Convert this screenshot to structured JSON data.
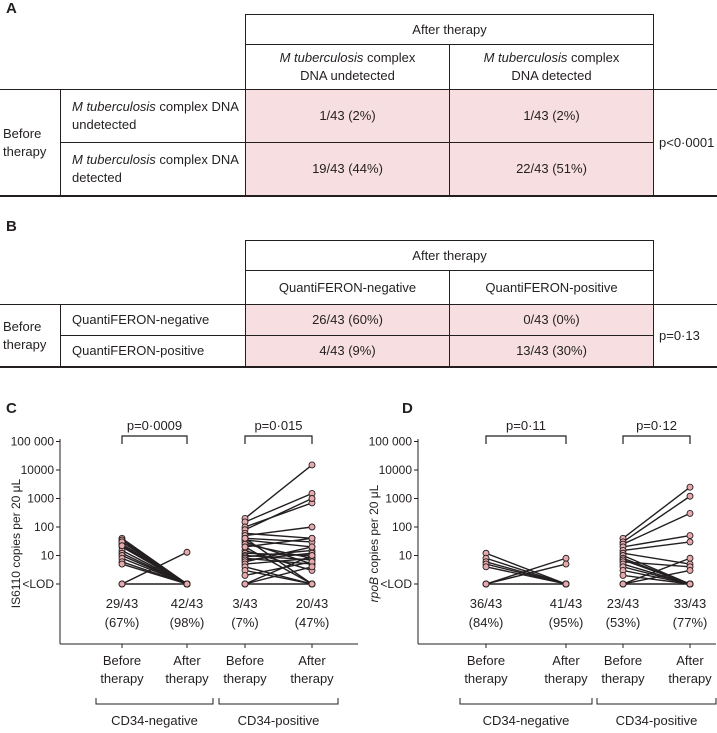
{
  "panel_a": {
    "letter": "A",
    "after_header": "After therapy",
    "col1": {
      "organism": "M tuberculosis",
      "line1_suffix": " complex",
      "line2": "DNA undetected"
    },
    "col2": {
      "organism": "M tuberculosis",
      "line1_suffix": " complex",
      "line2": "DNA detected"
    },
    "before_label_1": "Before",
    "before_label_2": "therapy",
    "row1": {
      "organism": "M tuberculosis",
      "line1_suffix": " complex DNA",
      "line2": "undetected",
      "v1": "1/43 (2%)",
      "v2": "1/43 (2%)"
    },
    "row2": {
      "organism": "M tuberculosis",
      "line1_suffix": " complex DNA",
      "line2": "detected",
      "v1": "19/43 (44%)",
      "v2": "22/43 (51%)"
    },
    "p_value": "p<0·0001"
  },
  "panel_b": {
    "letter": "B",
    "after_header": "After therapy",
    "col1": "QuantiFERON-negative",
    "col2": "QuantiFERON-positive",
    "before_label_1": "Before",
    "before_label_2": "therapy",
    "row1": {
      "label": "QuantiFERON-negative",
      "v1": "26/43 (60%)",
      "v2": "0/43 (0%)"
    },
    "row2": {
      "label": "QuantiFERON-positive",
      "v1": "4/43 (9%)",
      "v2": "13/43 (30%)"
    },
    "p_value": "p=0·13"
  },
  "chart_data": [
    {
      "panel": "C",
      "type": "line",
      "ylabel": "IS6110 copies per 20 μL",
      "ylabel_prefix": "IS",
      "ylabel_number": "6110",
      "ylabel_rest": " copies per 20 μL",
      "yticks": [
        "<LOD",
        "10",
        "100",
        "1000",
        "10000",
        "100 000"
      ],
      "groups": [
        {
          "name": "CD34-negative",
          "x_labels": [
            [
              "Before",
              "therapy"
            ],
            [
              "After",
              "therapy"
            ]
          ],
          "p_value": "p=0·0009",
          "counts": [
            [
              "29/43",
              "(67%)"
            ],
            [
              "42/43",
              "(98%)"
            ]
          ],
          "pairs": [
            [
              40,
              0
            ],
            [
              35,
              0
            ],
            [
              30,
              0
            ],
            [
              25,
              0
            ],
            [
              20,
              0
            ],
            [
              15,
              0
            ],
            [
              12,
              0
            ],
            [
              10,
              0
            ],
            [
              8,
              0
            ],
            [
              6,
              0
            ],
            [
              5,
              0
            ],
            [
              30,
              0
            ],
            [
              22,
              0
            ],
            [
              0,
              13
            ],
            [
              0,
              0
            ]
          ]
        },
        {
          "name": "CD34-positive",
          "x_labels": [
            [
              "Before",
              "therapy"
            ],
            [
              "After",
              "therapy"
            ]
          ],
          "p_value": "p=0·015",
          "counts": [
            [
              "3/43",
              "(7%)"
            ],
            [
              "20/43",
              "(47%)"
            ]
          ],
          "pairs": [
            [
              200,
              15000
            ],
            [
              150,
              1500
            ],
            [
              100,
              700
            ],
            [
              80,
              1000
            ],
            [
              60,
              40
            ],
            [
              50,
              100
            ],
            [
              40,
              30
            ],
            [
              35,
              20
            ],
            [
              30,
              5
            ],
            [
              25,
              8
            ],
            [
              20,
              40
            ],
            [
              15,
              3
            ],
            [
              12,
              10
            ],
            [
              10,
              7
            ],
            [
              9,
              15
            ],
            [
              8,
              5
            ],
            [
              7,
              12
            ],
            [
              6,
              20
            ],
            [
              5,
              8
            ],
            [
              4,
              0
            ],
            [
              3,
              0
            ],
            [
              2,
              6
            ],
            [
              40,
              0
            ],
            [
              20,
              0
            ],
            [
              0,
              10
            ],
            [
              0,
              4
            ],
            [
              0,
              0
            ]
          ]
        }
      ]
    },
    {
      "panel": "D",
      "type": "line",
      "ylabel": "rpoB copies per 20 μL",
      "ylabel_gene": "rpoB",
      "ylabel_rest": " copies per 20 μL",
      "yticks": [
        "<LOD",
        "10",
        "100",
        "1000",
        "10000",
        "100 000"
      ],
      "groups": [
        {
          "name": "CD34-negative",
          "x_labels": [
            [
              "Before",
              "therapy"
            ],
            [
              "After",
              "therapy"
            ]
          ],
          "p_value": "p=0·11",
          "counts": [
            [
              "36/43",
              "(84%)"
            ],
            [
              "41/43",
              "(95%)"
            ]
          ],
          "pairs": [
            [
              12,
              0
            ],
            [
              8,
              0
            ],
            [
              6,
              0
            ],
            [
              5,
              0
            ],
            [
              4,
              0
            ],
            [
              0,
              8
            ],
            [
              0,
              5
            ],
            [
              0,
              0
            ]
          ]
        },
        {
          "name": "CD34-positive",
          "x_labels": [
            [
              "Before",
              "therapy"
            ],
            [
              "After",
              "therapy"
            ]
          ],
          "p_value": "p=0·12",
          "counts": [
            [
              "23/43",
              "(53%)"
            ],
            [
              "33/43",
              "(77%)"
            ]
          ],
          "pairs": [
            [
              40,
              2500
            ],
            [
              30,
              1200
            ],
            [
              25,
              300
            ],
            [
              20,
              50
            ],
            [
              15,
              30
            ],
            [
              12,
              5
            ],
            [
              10,
              0
            ],
            [
              8,
              0
            ],
            [
              7,
              0
            ],
            [
              6,
              4
            ],
            [
              5,
              0
            ],
            [
              4,
              0
            ],
            [
              3,
              0
            ],
            [
              2,
              0
            ],
            [
              0,
              8
            ],
            [
              0,
              3
            ],
            [
              0,
              0
            ]
          ]
        }
      ]
    }
  ]
}
